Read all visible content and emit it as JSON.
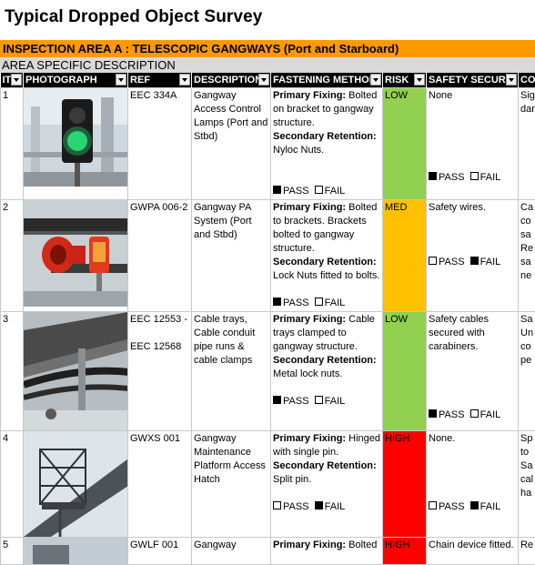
{
  "title": "Typical Dropped Object Survey",
  "area_header": "INSPECTION AREA A : TELESCOPIC GANGWAYS (Port and Starboard)",
  "area_desc": "AREA SPECIFIC DESCRIPTION",
  "columns": {
    "item": "IT",
    "photo": "PHOTOGRAPH",
    "ref": "REF",
    "description": "DESCRIPTION",
    "fastening": "FASTENING METHOD",
    "risk": "RISK",
    "safety": "SAFETY SECURI",
    "comments": "CO"
  },
  "labels": {
    "primary": "Primary Fixing:",
    "secondary": "Secondary Retention:",
    "pass": "PASS",
    "fail": "FAIL"
  },
  "rows": [
    {
      "item": "1",
      "ref": "EEC 334A",
      "description": "Gangway Access Control Lamps (Port and Stbd)",
      "primary": "Bolted on bracket to gangway structure.",
      "secondary": "Nyloc Nuts.",
      "fasten_pass": true,
      "risk": "LOW",
      "safety": "None",
      "safety_pass": true,
      "comment": "Sig dar"
    },
    {
      "item": "2",
      "ref": "GWPA 006-2",
      "description": "Gangway PA System (Port and Stbd)",
      "primary": "Bolted to brackets. Brackets bolted to gangway structure.",
      "secondary": "Lock Nuts fitted to bolts.",
      "fasten_pass": true,
      "risk": "MED",
      "safety": "Safety wires.",
      "safety_pass": false,
      "comment": "Ca co sa Re sa ne"
    },
    {
      "item": "3",
      "ref": "EEC 12553 -",
      "ref2": "EEC 12568",
      "description": "Cable trays, Cable conduit pipe runs & cable clamps",
      "primary": "Cable trays clamped to gangway structure.",
      "secondary": "Metal lock nuts.",
      "fasten_pass": true,
      "risk": "LOW",
      "safety": "Safety cables secured with carabiners.",
      "safety_pass": true,
      "comment": "Sa Un co pe"
    },
    {
      "item": "4",
      "ref": "GWXS 001",
      "description": "Gangway Maintenance Platform Access Hatch",
      "primary": "Hinged with single pin.",
      "secondary": "Split pin.",
      "fasten_pass": false,
      "risk": "HIGH",
      "safety": "None.",
      "safety_pass": false,
      "comment": "Sp to Sa cal ha"
    },
    {
      "item": "5",
      "ref": "GWLF 001",
      "description": "Gangway",
      "primary": "Bolted",
      "risk": "HIGH",
      "safety": "Chain device fitted.",
      "comment": "Re"
    }
  ]
}
